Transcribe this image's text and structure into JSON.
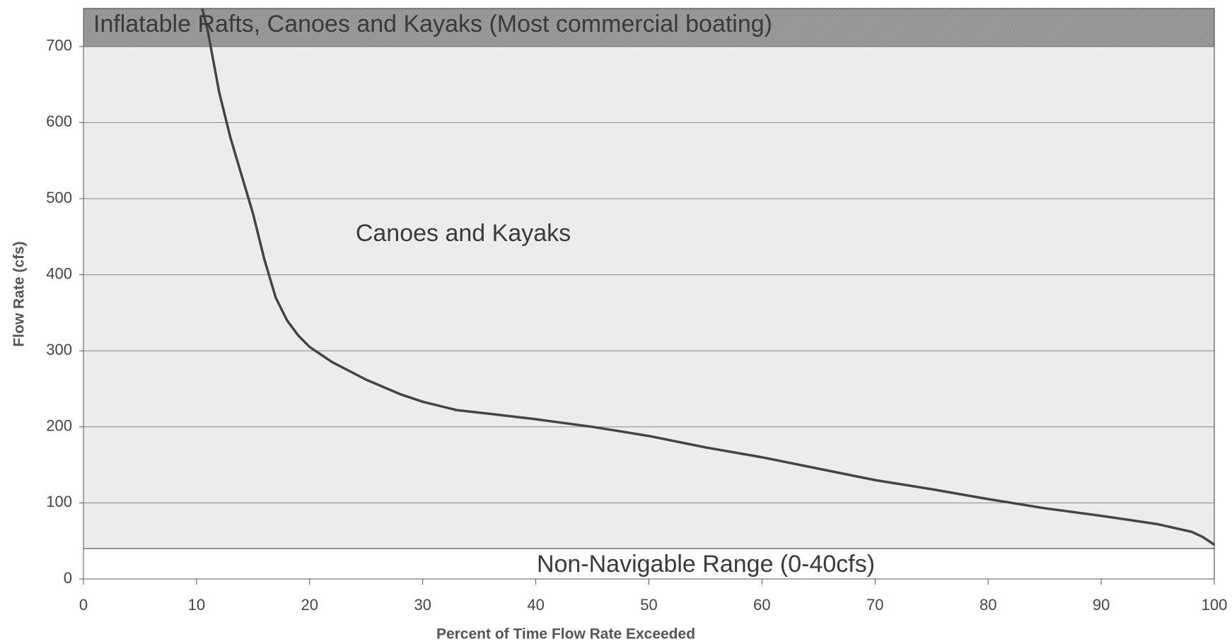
{
  "chart_data": {
    "type": "line",
    "x_label": "Percent of Time Flow Rate Exceeded",
    "y_label": "Flow Rate (cfs)",
    "xlim": [
      0,
      100
    ],
    "xticks": [
      0,
      10,
      20,
      30,
      40,
      50,
      60,
      70,
      80,
      90,
      100
    ],
    "ylim": [
      0,
      750
    ],
    "yticks": [
      0,
      100,
      200,
      300,
      400,
      500,
      600,
      700
    ],
    "grid": true,
    "bands": [
      {
        "from": 700,
        "to": 750,
        "label": "Inflatable Rafts, Canoes and Kayaks  (Most commercial boating)",
        "color": "#9a9a9a"
      },
      {
        "from": 40,
        "to": 700,
        "label": "Canoes and Kayaks",
        "color": "#ececec"
      },
      {
        "from": 0,
        "to": 40,
        "label": "Non-Navigable Range (0-40cfs)",
        "color": "#ffffff"
      }
    ],
    "series": [
      {
        "color": "#444444",
        "x": [
          10.5,
          11,
          12,
          13,
          14,
          15,
          16,
          17,
          18,
          19,
          20,
          22,
          25,
          28,
          30,
          33,
          36,
          40,
          45,
          50,
          55,
          60,
          65,
          70,
          75,
          80,
          85,
          90,
          95,
          98,
          99,
          100
        ],
        "values": [
          750,
          720,
          640,
          580,
          530,
          480,
          420,
          370,
          340,
          320,
          305,
          285,
          262,
          243,
          233,
          222,
          217,
          210,
          200,
          188,
          173,
          160,
          145,
          130,
          118,
          105,
          93,
          83,
          72,
          62,
          55,
          45
        ]
      }
    ]
  }
}
